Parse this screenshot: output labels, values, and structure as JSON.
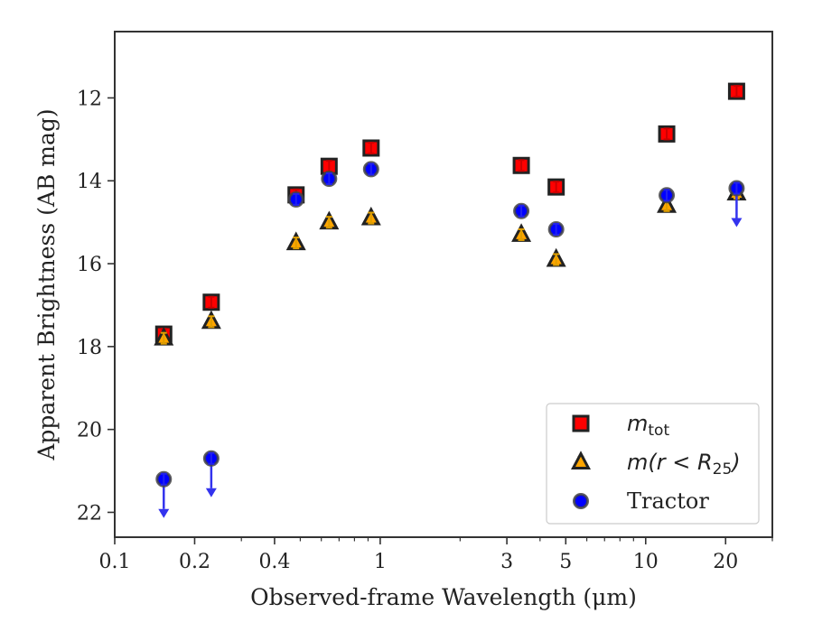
{
  "chart_data": {
    "type": "scatter",
    "xlabel": "Observed-frame Wavelength (μm)",
    "ylabel": "Apparent Brightness (AB mag)",
    "xscale": "log",
    "xlim": [
      0.1,
      30
    ],
    "ylim": [
      22.6,
      10.4
    ],
    "y_inverted": true,
    "xticks": [
      {
        "value": 0.1,
        "label": "0.1"
      },
      {
        "value": 0.2,
        "label": "0.2"
      },
      {
        "value": 0.4,
        "label": "0.4"
      },
      {
        "value": 1,
        "label": "1"
      },
      {
        "value": 3,
        "label": "3"
      },
      {
        "value": 5,
        "label": "5"
      },
      {
        "value": 10,
        "label": "10"
      },
      {
        "value": 20,
        "label": "20"
      }
    ],
    "yticks": [
      {
        "value": 12,
        "label": "12"
      },
      {
        "value": 14,
        "label": "14"
      },
      {
        "value": 16,
        "label": "16"
      },
      {
        "value": 18,
        "label": "18"
      },
      {
        "value": 20,
        "label": "20"
      },
      {
        "value": 22,
        "label": "22"
      }
    ],
    "grid": false,
    "legend_position": "lower-right",
    "series": [
      {
        "key": "mtot",
        "legend": {
          "main": "m",
          "sub": "tot"
        },
        "marker": "square",
        "color": "#ff0000",
        "errorbar_color": "#cc0000",
        "points": [
          {
            "x": 0.153,
            "y": 17.7
          },
          {
            "x": 0.231,
            "y": 16.93
          },
          {
            "x": 0.482,
            "y": 14.34
          },
          {
            "x": 0.642,
            "y": 13.65
          },
          {
            "x": 0.924,
            "y": 13.21
          },
          {
            "x": 3.4,
            "y": 13.63
          },
          {
            "x": 4.6,
            "y": 14.15
          },
          {
            "x": 12.0,
            "y": 12.87
          },
          {
            "x": 22.0,
            "y": 11.84
          }
        ]
      },
      {
        "key": "mr25",
        "legend": {
          "prefix": "m(r < R",
          "sub": "25",
          "suffix": ")"
        },
        "marker": "triangle",
        "color": "#ffa500",
        "errorbar_color": "#e0a000",
        "points": [
          {
            "x": 0.153,
            "y": 17.8
          },
          {
            "x": 0.231,
            "y": 17.4
          },
          {
            "x": 0.482,
            "y": 15.5
          },
          {
            "x": 0.642,
            "y": 15.0
          },
          {
            "x": 0.924,
            "y": 14.9
          },
          {
            "x": 3.4,
            "y": 15.3
          },
          {
            "x": 4.6,
            "y": 15.9
          },
          {
            "x": 12.0,
            "y": 14.6
          },
          {
            "x": 22.0,
            "y": 14.3
          }
        ]
      },
      {
        "key": "tractor",
        "legend": {
          "text": "Tractor"
        },
        "marker": "circle",
        "color": "#0000ff",
        "errorbar_color": "#2222ee",
        "upper_limit_color": "#3333ee",
        "points": [
          {
            "x": 0.153,
            "y": 21.2,
            "upper_limit": true
          },
          {
            "x": 0.231,
            "y": 20.7,
            "upper_limit": true
          },
          {
            "x": 0.482,
            "y": 14.45
          },
          {
            "x": 0.642,
            "y": 13.95
          },
          {
            "x": 0.924,
            "y": 13.72
          },
          {
            "x": 3.4,
            "y": 14.73
          },
          {
            "x": 4.6,
            "y": 15.17
          },
          {
            "x": 12.0,
            "y": 14.35
          },
          {
            "x": 22.0,
            "y": 14.18,
            "upper_limit": true
          }
        ]
      }
    ]
  }
}
